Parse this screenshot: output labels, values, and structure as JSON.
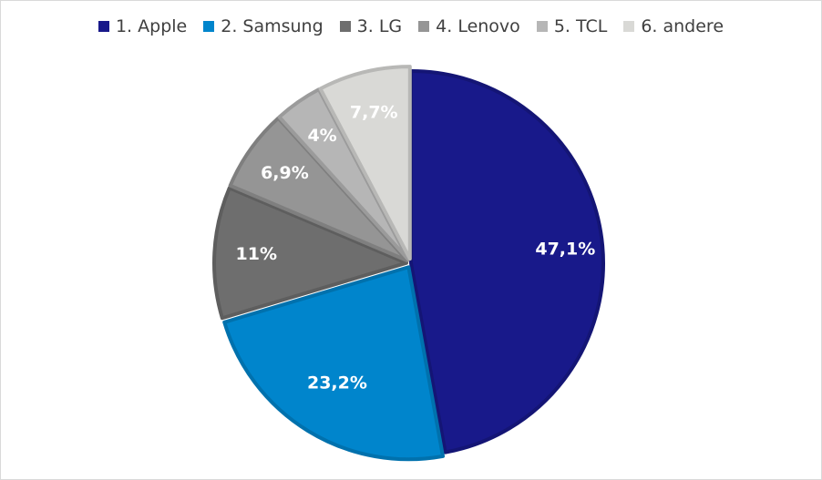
{
  "chart_data": {
    "type": "pie",
    "legend_position": "top",
    "series": [
      {
        "name": "1. Apple",
        "value": 47.1,
        "label": "47,1%",
        "color": "#18198a"
      },
      {
        "name": "2. Samsung",
        "value": 23.2,
        "label": "23,2%",
        "color": "#0085cc"
      },
      {
        "name": "3. LG",
        "value": 11.0,
        "label": "11%",
        "color": "#6e6e6e"
      },
      {
        "name": "4. Lenovo",
        "value": 6.9,
        "label": "6,9%",
        "color": "#959595"
      },
      {
        "name": "5. TCL",
        "value": 4.0,
        "label": "4%",
        "color": "#b6b6b6"
      },
      {
        "name": "6. andere",
        "value": 7.7,
        "label": "7,7%",
        "color": "#d9d9d6"
      }
    ]
  }
}
